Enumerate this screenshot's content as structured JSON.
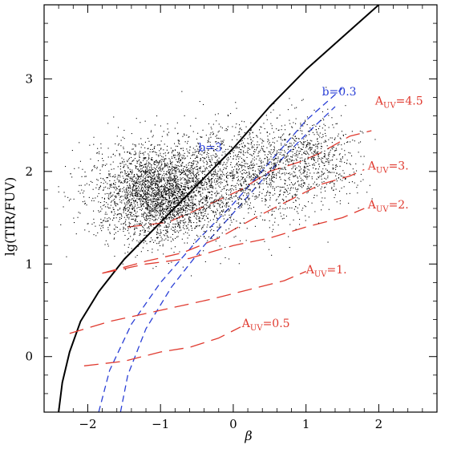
{
  "chart_data": {
    "type": "scatter",
    "xlabel": "β",
    "ylabel": "lg(TIR/FUV)",
    "xlim": [
      -2.6,
      2.8
    ],
    "ylim": [
      -0.6,
      3.8
    ],
    "xticks": [
      -2,
      -1,
      0,
      1,
      2
    ],
    "yticks": [
      0,
      1,
      2,
      3
    ],
    "grid": false,
    "colors": {
      "points": "#000000",
      "black_curve": "#000000",
      "blue": "#2a3fd6",
      "red": "#e03a2f"
    },
    "scatter_cloud": {
      "description_count": 5000,
      "components": [
        {
          "cx": -1.0,
          "cy": 1.78,
          "sx": 0.45,
          "sy": 0.25,
          "weight": 0.62
        },
        {
          "cx": 0.2,
          "cy": 2.0,
          "sx": 0.55,
          "sy": 0.28,
          "weight": 0.28
        },
        {
          "cx": 1.1,
          "cy": 2.15,
          "sx": 0.35,
          "sy": 0.2,
          "weight": 0.1
        }
      ]
    },
    "series": [
      {
        "color_key": "black_curve",
        "dash": "none",
        "points": [
          [
            -2.4,
            -0.6
          ],
          [
            -2.35,
            -0.28
          ],
          [
            -2.25,
            0.05
          ],
          [
            -2.1,
            0.38
          ],
          [
            -1.85,
            0.7
          ],
          [
            -1.5,
            1.05
          ],
          [
            -1.0,
            1.45
          ],
          [
            -0.5,
            1.85
          ],
          [
            0.0,
            2.25
          ],
          [
            0.5,
            2.7
          ],
          [
            1.0,
            3.1
          ],
          [
            1.5,
            3.45
          ],
          [
            2.0,
            3.8
          ]
        ]
      },
      {
        "color_key": "blue",
        "dash": "8,5",
        "points": [
          [
            -1.85,
            -0.6
          ],
          [
            -1.7,
            -0.15
          ],
          [
            -1.4,
            0.35
          ],
          [
            -1.0,
            0.8
          ],
          [
            -0.5,
            1.25
          ],
          [
            0.0,
            1.65
          ],
          [
            0.5,
            2.1
          ],
          [
            1.0,
            2.55
          ],
          [
            1.5,
            2.9
          ]
        ]
      },
      {
        "color_key": "blue",
        "dash": "8,5",
        "points": [
          [
            -1.55,
            -0.6
          ],
          [
            -1.45,
            -0.2
          ],
          [
            -1.2,
            0.3
          ],
          [
            -0.85,
            0.75
          ],
          [
            -0.4,
            1.2
          ],
          [
            0.0,
            1.55
          ],
          [
            0.5,
            2.0
          ],
          [
            1.0,
            2.4
          ],
          [
            1.4,
            2.7
          ]
        ]
      },
      {
        "color_key": "red",
        "dash": "18,9",
        "points": [
          [
            -1.45,
            1.4
          ],
          [
            -0.9,
            1.45
          ],
          [
            -0.4,
            1.62
          ],
          [
            0.1,
            1.8
          ],
          [
            0.5,
            2.0
          ],
          [
            0.9,
            2.1
          ],
          [
            1.2,
            2.2
          ],
          [
            1.6,
            2.38
          ],
          [
            1.9,
            2.44
          ]
        ]
      },
      {
        "color_key": "red",
        "dash": "18,9",
        "points": [
          [
            -1.8,
            0.9
          ],
          [
            -1.2,
            1.03
          ],
          [
            -0.7,
            1.12
          ],
          [
            -0.2,
            1.28
          ],
          [
            0.3,
            1.5
          ],
          [
            0.8,
            1.7
          ],
          [
            1.2,
            1.86
          ],
          [
            1.6,
            1.95
          ],
          [
            1.8,
            2.02
          ]
        ]
      },
      {
        "color_key": "red",
        "dash": "18,9",
        "points": [
          [
            -1.8,
            0.9
          ],
          [
            -1.2,
            1.0
          ],
          [
            -0.6,
            1.06
          ],
          [
            0.0,
            1.2
          ],
          [
            0.5,
            1.28
          ],
          [
            1.0,
            1.4
          ],
          [
            1.5,
            1.5
          ],
          [
            1.8,
            1.6
          ]
        ]
      },
      {
        "color_key": "red",
        "dash": "18,9",
        "points": [
          [
            -2.25,
            0.25
          ],
          [
            -1.7,
            0.38
          ],
          [
            -1.0,
            0.5
          ],
          [
            -0.3,
            0.62
          ],
          [
            0.2,
            0.72
          ],
          [
            0.7,
            0.82
          ],
          [
            1.0,
            0.92
          ]
        ]
      },
      {
        "color_key": "red",
        "dash": "18,9",
        "points": [
          [
            -2.05,
            -0.1
          ],
          [
            -1.5,
            -0.05
          ],
          [
            -1.0,
            0.05
          ],
          [
            -0.6,
            0.1
          ],
          [
            -0.2,
            0.2
          ],
          [
            0.1,
            0.32
          ]
        ]
      }
    ],
    "annotations": [
      {
        "text_main": "b=0.3",
        "sub": "",
        "text_tail": "",
        "color_key": "blue",
        "x": 1.22,
        "y": 2.82
      },
      {
        "text_main": "b=3",
        "sub": "",
        "text_tail": "",
        "color_key": "blue",
        "x": -0.48,
        "y": 2.22
      },
      {
        "text_main": "A",
        "sub": "UV",
        "text_tail": "=4.5",
        "color_key": "red",
        "x": 1.95,
        "y": 2.72
      },
      {
        "text_main": "A",
        "sub": "UV",
        "text_tail": "=3.",
        "color_key": "red",
        "x": 1.85,
        "y": 2.02
      },
      {
        "text_main": "A",
        "sub": "UV",
        "text_tail": "=2.",
        "color_key": "red",
        "x": 1.85,
        "y": 1.6
      },
      {
        "text_main": "A",
        "sub": "UV",
        "text_tail": "=1.",
        "color_key": "red",
        "x": 1.0,
        "y": 0.9
      },
      {
        "text_main": "A",
        "sub": "UV",
        "text_tail": "=0.5",
        "color_key": "red",
        "x": 0.12,
        "y": 0.32
      }
    ]
  }
}
